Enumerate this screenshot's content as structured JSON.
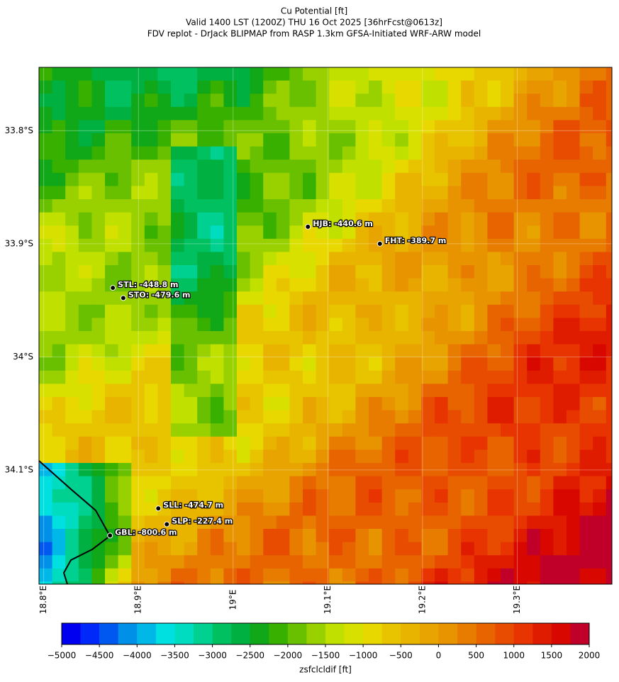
{
  "chart_data": {
    "type": "map",
    "title_lines": [
      "Cu Potential [ft]",
      "Valid 1400 LST (1200Z) THU 16 Oct 2025 [36hrFcst@0613z]",
      "FDV replot - DrJack BLIPMAP from RASP 1.3km GFSA-Initiated WRF-ARW model"
    ],
    "xlim": [
      18.795,
      19.4
    ],
    "ylim": [
      -34.201,
      -33.744
    ],
    "xticks": [
      {
        "value": 18.8,
        "label": "18.8°E"
      },
      {
        "value": 18.9,
        "label": "18.9°E"
      },
      {
        "value": 19.0,
        "label": "19°E"
      },
      {
        "value": 19.1,
        "label": "19.1°E"
      },
      {
        "value": 19.2,
        "label": "19.2°E"
      },
      {
        "value": 19.3,
        "label": "19.3°E"
      }
    ],
    "yticks": [
      {
        "value": -33.8,
        "label": "33.8°S"
      },
      {
        "value": -33.9,
        "label": "33.9°S"
      },
      {
        "value": -34.0,
        "label": "34°S"
      },
      {
        "value": -34.1,
        "label": "34.1°S"
      }
    ],
    "grid": true,
    "points": {
      "x": [
        18.873,
        18.884,
        19.079,
        19.155,
        18.921,
        18.93,
        18.87
      ],
      "y": [
        -33.939,
        -33.948,
        -33.885,
        -33.9,
        -34.134,
        -34.148,
        -34.158
      ],
      "values": [
        -448.8,
        -479.6,
        -440.6,
        -389.7,
        -474.7,
        -227.4,
        -800.6
      ],
      "value_labels": [
        "STL: -448.8 m",
        "STO: -479.6 m",
        "HJB: -440.6 m",
        "FHT: -389.7 m",
        "SLL: -474.7 m",
        "SLP: -227.4 m",
        "GBL: -800.6 m"
      ]
    },
    "colorbar": {
      "label": "zsfclcldif [ft]",
      "bins": [
        -5000,
        -4750,
        -4500,
        -4250,
        -4000,
        -3750,
        -3500,
        -3250,
        -3000,
        -2750,
        -2500,
        -2250,
        -2000,
        -1750,
        -1500,
        -1250,
        -1000,
        -750,
        -500,
        -250,
        0,
        250,
        500,
        750,
        1000,
        1250,
        1500,
        1750,
        2000
      ],
      "colors": [
        "#0000f0",
        "#0028f8",
        "#0058f0",
        "#0090e8",
        "#00b8e8",
        "#00e0e0",
        "#00dcc0",
        "#00d090",
        "#00c060",
        "#00b040",
        "#10a818",
        "#38b000",
        "#68c000",
        "#98d000",
        "#c0e000",
        "#d8e000",
        "#e8d800",
        "#e8c400",
        "#e8b400",
        "#e8a400",
        "#e89400",
        "#e87c00",
        "#e86400",
        "#e84c00",
        "#e83400",
        "#e01c00",
        "#d80800",
        "#c00028"
      ],
      "ticks": [
        {
          "value": -5000,
          "label": "−5000"
        },
        {
          "value": -4500,
          "label": "−4500"
        },
        {
          "value": -4000,
          "label": "−4000"
        },
        {
          "value": -3500,
          "label": "−3500"
        },
        {
          "value": -3000,
          "label": "−3000"
        },
        {
          "value": -2500,
          "label": "−2500"
        },
        {
          "value": -2000,
          "label": "−2000"
        },
        {
          "value": -1500,
          "label": "−1500"
        },
        {
          "value": -1000,
          "label": "−1000"
        },
        {
          "value": -500,
          "label": "−500"
        },
        0,
        500,
        1000,
        1500,
        2000
      ]
    }
  }
}
